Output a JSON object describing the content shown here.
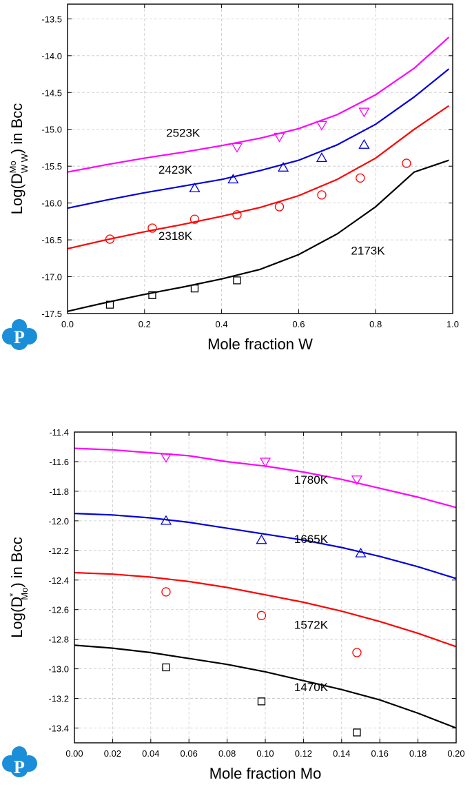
{
  "colors": {
    "magenta": "#ff00ff",
    "blue": "#0000dd",
    "red": "#ff0000",
    "black": "#000000",
    "logo": "#1a8ed8"
  },
  "logo": {
    "letter": "P",
    "icon": "cloud-p-logo"
  },
  "chart_data": [
    {
      "type": "line",
      "title": "",
      "xlabel": "Mole fraction W",
      "ylabel": "Log(D^Mo_WW) in Bcc",
      "ylabel_parts": {
        "pre": "Log(D",
        "sup": "Mo",
        "sub": "W W",
        "post": ") in Bcc"
      },
      "xlim": [
        0.0,
        1.0
      ],
      "ylim": [
        -17.5,
        -13.3
      ],
      "x_ticks": [
        0.0,
        0.2,
        0.4,
        0.6,
        0.8,
        1.0
      ],
      "x_tick_labels": [
        "0.0",
        "0.2",
        "0.4",
        "0.6",
        "0.8",
        "1.0"
      ],
      "y_ticks": [
        -17.5,
        -17.0,
        -16.5,
        -16.0,
        -15.5,
        -15.0,
        -14.5,
        -14.0,
        -13.5
      ],
      "y_tick_labels": [
        "-17.5",
        "-17.0",
        "-16.5",
        "-16.0",
        "-15.5",
        "-15.0",
        "-14.5",
        "-14.0",
        "-13.5"
      ],
      "grid": true,
      "series": [
        {
          "name": "2523K",
          "color": "#ff00ff",
          "marker": "triangle-down",
          "curve": {
            "x": [
              0.0,
              0.1,
              0.2,
              0.3,
              0.4,
              0.5,
              0.6,
              0.7,
              0.8,
              0.9,
              0.99
            ],
            "y": [
              -15.58,
              -15.48,
              -15.39,
              -15.31,
              -15.22,
              -15.12,
              -14.99,
              -14.8,
              -14.53,
              -14.17,
              -13.75
            ]
          },
          "points": {
            "x": [
              0.44,
              0.55,
              0.66,
              0.77
            ],
            "y": [
              -15.24,
              -15.1,
              -14.94,
              -14.76
            ]
          },
          "label_at": [
            0.3,
            -15.1
          ]
        },
        {
          "name": "2423K",
          "color": "#0000dd",
          "marker": "triangle-up",
          "curve": {
            "x": [
              0.0,
              0.1,
              0.2,
              0.3,
              0.4,
              0.5,
              0.6,
              0.7,
              0.8,
              0.9,
              0.99
            ],
            "y": [
              -16.07,
              -15.96,
              -15.86,
              -15.77,
              -15.68,
              -15.56,
              -15.42,
              -15.21,
              -14.93,
              -14.56,
              -14.18
            ]
          },
          "points": {
            "x": [
              0.33,
              0.43,
              0.56,
              0.66,
              0.77
            ],
            "y": [
              -15.8,
              -15.68,
              -15.52,
              -15.39,
              -15.21
            ]
          },
          "label_at": [
            0.28,
            -15.6
          ]
        },
        {
          "name": "2318K",
          "color": "#ff0000",
          "marker": "circle",
          "curve": {
            "x": [
              0.0,
              0.1,
              0.2,
              0.3,
              0.4,
              0.5,
              0.6,
              0.7,
              0.8,
              0.9,
              0.99
            ],
            "y": [
              -16.62,
              -16.5,
              -16.39,
              -16.29,
              -16.18,
              -16.06,
              -15.9,
              -15.68,
              -15.39,
              -15.0,
              -14.68
            ]
          },
          "points": {
            "x": [
              0.11,
              0.22,
              0.33,
              0.44,
              0.55,
              0.66,
              0.76,
              0.88
            ],
            "y": [
              -16.49,
              -16.34,
              -16.22,
              -16.16,
              -16.05,
              -15.89,
              -15.66,
              -15.46
            ]
          },
          "label_at": [
            0.28,
            -16.5
          ]
        },
        {
          "name": "2173K",
          "color": "#000000",
          "marker": "square",
          "curve": {
            "x": [
              0.0,
              0.1,
              0.2,
              0.3,
              0.4,
              0.5,
              0.6,
              0.7,
              0.8,
              0.9,
              0.99
            ],
            "y": [
              -17.47,
              -17.35,
              -17.24,
              -17.14,
              -17.03,
              -16.9,
              -16.7,
              -16.42,
              -16.05,
              -15.58,
              -15.42
            ]
          },
          "points": {
            "x": [
              0.11,
              0.22,
              0.33,
              0.44
            ],
            "y": [
              -17.38,
              -17.25,
              -17.16,
              -17.05
            ]
          },
          "label_at": [
            0.78,
            -16.7
          ]
        }
      ]
    },
    {
      "type": "line",
      "title": "",
      "xlabel": "Mole fraction Mo",
      "ylabel": "Log(D*_Mo) in Bcc",
      "ylabel_parts": {
        "pre": "Log(D",
        "sup": "*",
        "sub": "Mo",
        "post": ") in Bcc"
      },
      "xlim": [
        0.0,
        0.2
      ],
      "ylim": [
        -13.5,
        -11.4
      ],
      "x_ticks": [
        0.0,
        0.02,
        0.04,
        0.06,
        0.08,
        0.1,
        0.12,
        0.14,
        0.16,
        0.18,
        0.2
      ],
      "x_tick_labels": [
        "0.00",
        "0.02",
        "0.04",
        "0.06",
        "0.08",
        "0.10",
        "0.12",
        "0.14",
        "0.16",
        "0.18",
        "0.20"
      ],
      "y_ticks": [
        -13.4,
        -13.2,
        -13.0,
        -12.8,
        -12.6,
        -12.4,
        -12.2,
        -12.0,
        -11.8,
        -11.6,
        -11.4
      ],
      "y_tick_labels": [
        "-13.4",
        "-13.2",
        "-13.0",
        "-12.8",
        "-12.6",
        "-12.4",
        "-12.2",
        "-12.0",
        "-11.8",
        "-11.6",
        "-11.4"
      ],
      "grid": true,
      "series": [
        {
          "name": "1780K",
          "color": "#ff00ff",
          "marker": "triangle-down",
          "curve": {
            "x": [
              0.0,
              0.02,
              0.04,
              0.06,
              0.08,
              0.1,
              0.12,
              0.14,
              0.16,
              0.18,
              0.2
            ],
            "y": [
              -11.51,
              -11.52,
              -11.54,
              -11.56,
              -11.6,
              -11.63,
              -11.67,
              -11.72,
              -11.78,
              -11.84,
              -11.91
            ]
          },
          "points": {
            "x": [
              0.048,
              0.1,
              0.148
            ],
            "y": [
              -11.57,
              -11.6,
              -11.72
            ]
          },
          "label_at": [
            0.124,
            -11.75
          ]
        },
        {
          "name": "1665K",
          "color": "#0000dd",
          "marker": "triangle-up",
          "curve": {
            "x": [
              0.0,
              0.02,
              0.04,
              0.06,
              0.08,
              0.1,
              0.12,
              0.14,
              0.16,
              0.18,
              0.2
            ],
            "y": [
              -11.95,
              -11.96,
              -11.98,
              -12.01,
              -12.05,
              -12.09,
              -12.13,
              -12.18,
              -12.24,
              -12.31,
              -12.39
            ]
          },
          "points": {
            "x": [
              0.048,
              0.098,
              0.15
            ],
            "y": [
              -12.0,
              -12.13,
              -12.22
            ]
          },
          "label_at": [
            0.124,
            -12.15
          ]
        },
        {
          "name": "1572K",
          "color": "#ff0000",
          "marker": "circle",
          "curve": {
            "x": [
              0.0,
              0.02,
              0.04,
              0.06,
              0.08,
              0.1,
              0.12,
              0.14,
              0.16,
              0.18,
              0.2
            ],
            "y": [
              -12.35,
              -12.36,
              -12.38,
              -12.41,
              -12.45,
              -12.5,
              -12.55,
              -12.61,
              -12.68,
              -12.76,
              -12.85
            ]
          },
          "points": {
            "x": [
              0.048,
              0.098,
              0.148
            ],
            "y": [
              -12.48,
              -12.64,
              -12.89
            ]
          },
          "label_at": [
            0.124,
            -12.73
          ]
        },
        {
          "name": "1470K",
          "color": "#000000",
          "marker": "square",
          "curve": {
            "x": [
              0.0,
              0.02,
              0.04,
              0.06,
              0.08,
              0.1,
              0.12,
              0.14,
              0.16,
              0.18,
              0.2
            ],
            "y": [
              -12.84,
              -12.86,
              -12.89,
              -12.93,
              -12.97,
              -13.02,
              -13.08,
              -13.14,
              -13.21,
              -13.3,
              -13.4
            ]
          },
          "points": {
            "x": [
              0.048,
              0.098,
              0.148
            ],
            "y": [
              -12.99,
              -13.22,
              -13.43
            ]
          },
          "label_at": [
            0.124,
            -13.15
          ]
        }
      ]
    }
  ]
}
